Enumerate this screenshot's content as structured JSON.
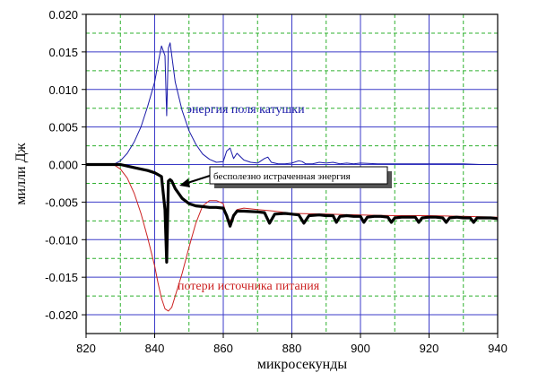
{
  "chart_data": {
    "type": "line",
    "xlabel": "микросекунды",
    "ylabel": "милли Дж",
    "xlim": [
      820,
      940
    ],
    "ylim": [
      -0.0225,
      0.02
    ],
    "x_ticks": [
      "820",
      "840",
      "860",
      "880",
      "900",
      "920",
      "940"
    ],
    "y_ticks": [
      "0.020",
      "0.015",
      "0.010",
      "0.005",
      "0.000",
      "-0.005",
      "-0.010",
      "-0.015",
      "-0.020"
    ],
    "grid": true,
    "series": [
      {
        "name": "энергия поля катушки",
        "color": "#1a1aa8",
        "x": [
          820,
          828,
          830,
          832,
          834,
          836,
          838,
          840,
          841,
          842,
          843,
          843.5,
          844,
          844.5,
          845,
          846,
          848,
          850,
          852,
          854,
          856,
          858,
          860,
          861,
          862,
          863,
          864,
          866,
          868,
          870,
          872,
          873,
          874,
          876,
          878,
          880,
          882,
          883,
          884,
          886,
          888,
          890,
          892,
          894,
          896,
          898,
          900,
          905,
          910,
          915,
          920,
          925,
          930,
          935,
          940
        ],
        "y": [
          0,
          0,
          0.0005,
          0.0015,
          0.003,
          0.005,
          0.0078,
          0.011,
          0.0135,
          0.0158,
          0.0145,
          0.0065,
          0.0155,
          0.0162,
          0.0145,
          0.011,
          0.0072,
          0.0045,
          0.0027,
          0.0014,
          0.0007,
          0.0003,
          0.0004,
          0.0018,
          0.0022,
          0.0008,
          0.0015,
          0.0006,
          0.0003,
          0.0002,
          0.0008,
          0.001,
          0.0003,
          0.0001,
          0.0001,
          0.0002,
          0.0005,
          0.0004,
          0.0001,
          0.0001,
          0.0003,
          0.0002,
          0.0003,
          0.0001,
          0.0002,
          0.0001,
          0.0002,
          0.0001,
          0.0001,
          0.0001,
          0.0001,
          0.0001,
          0.0001,
          0,
          0
        ]
      },
      {
        "name": "потери источника питания",
        "color": "#cc2222",
        "x": [
          820,
          828,
          830,
          832,
          834,
          836,
          838,
          840,
          841,
          842,
          843,
          844,
          845,
          846,
          848,
          850,
          852,
          854,
          856,
          858,
          860,
          861,
          862,
          863,
          864,
          866,
          870,
          875,
          880,
          890,
          900,
          910,
          920,
          930,
          940
        ],
        "y": [
          0,
          0,
          -0.0006,
          -0.0018,
          -0.0038,
          -0.0065,
          -0.0098,
          -0.0135,
          -0.0158,
          -0.0178,
          -0.0192,
          -0.0195,
          -0.019,
          -0.0175,
          -0.0145,
          -0.011,
          -0.0078,
          -0.0055,
          -0.0048,
          -0.0048,
          -0.0052,
          -0.0068,
          -0.0075,
          -0.0068,
          -0.006,
          -0.0058,
          -0.006,
          -0.0062,
          -0.0065,
          -0.0066,
          -0.0067,
          -0.0068,
          -0.0068,
          -0.0069,
          -0.007
        ]
      },
      {
        "name": "бесполезно истраченная энергия",
        "color": "#000000",
        "x": [
          820,
          830,
          832,
          834,
          836,
          838,
          840,
          842,
          843,
          843.5,
          844,
          844.5,
          845,
          846,
          848,
          850,
          852,
          854,
          856,
          858,
          860,
          861,
          862,
          863,
          864,
          866,
          870,
          872,
          873.5,
          875,
          878,
          880,
          882,
          883.5,
          885,
          888,
          890,
          892,
          893,
          894,
          896,
          898,
          900,
          901,
          902,
          904,
          906,
          908,
          909,
          910,
          912,
          914,
          916,
          917,
          918,
          920,
          922,
          924,
          925,
          926,
          928,
          930,
          932,
          933,
          934,
          936,
          938,
          940
        ],
        "y": [
          0,
          0,
          -0.0002,
          -0.0004,
          -0.0006,
          -0.0008,
          -0.0011,
          -0.0016,
          -0.006,
          -0.013,
          -0.0022,
          -0.002,
          -0.0022,
          -0.0032,
          -0.0045,
          -0.0052,
          -0.0055,
          -0.0056,
          -0.0057,
          -0.0057,
          -0.0058,
          -0.0068,
          -0.0082,
          -0.0068,
          -0.0062,
          -0.0062,
          -0.0063,
          -0.0064,
          -0.0078,
          -0.0066,
          -0.0065,
          -0.0066,
          -0.0067,
          -0.0078,
          -0.0068,
          -0.0067,
          -0.0068,
          -0.0068,
          -0.0077,
          -0.0069,
          -0.0068,
          -0.0069,
          -0.0069,
          -0.0077,
          -0.007,
          -0.0069,
          -0.0069,
          -0.007,
          -0.0077,
          -0.0071,
          -0.007,
          -0.007,
          -0.007,
          -0.0077,
          -0.0071,
          -0.007,
          -0.007,
          -0.0071,
          -0.0077,
          -0.0071,
          -0.007,
          -0.0071,
          -0.0071,
          -0.0077,
          -0.0071,
          -0.0071,
          -0.0071,
          -0.0072
        ]
      }
    ],
    "annotations": {
      "blue_label": "энергия поля катушки",
      "red_label": "потери источника питания",
      "callout": "бесполезно истраченная энергия"
    }
  }
}
